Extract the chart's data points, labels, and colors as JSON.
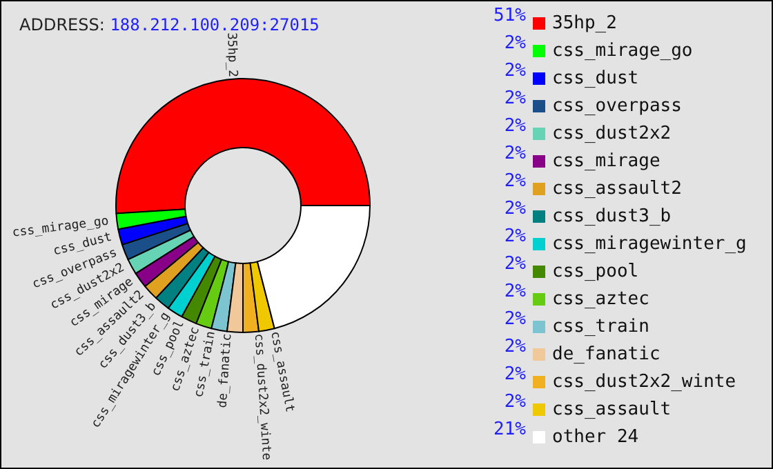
{
  "chart_data": {
    "type": "donut",
    "subtitle": "ADDRESS: 188.212.100.209:27015",
    "categories": [
      "35hp_2",
      "css_mirage_go",
      "css_dust",
      "css_overpass",
      "css_dust2x2",
      "css_mirage",
      "css_assault2",
      "css_dust3_b",
      "css_miragewinter_g",
      "css_pool",
      "css_aztec",
      "css_train",
      "de_fanatic",
      "css_dust2x2_winte",
      "css_assault",
      "other 24"
    ],
    "values": [
      51,
      2,
      2,
      2,
      2,
      2,
      2,
      2,
      2,
      2,
      2,
      2,
      2,
      2,
      2,
      21
    ],
    "value_labels": [
      "51%",
      "2%",
      "2%",
      "2%",
      "2%",
      "2%",
      "2%",
      "2%",
      "2%",
      "2%",
      "2%",
      "2%",
      "2%",
      "2%",
      "2%",
      "21%"
    ],
    "colors": [
      "#ff0000",
      "#00ff00",
      "#0000ff",
      "#1a4f8a",
      "#66d4b4",
      "#880088",
      "#e0a020",
      "#008080",
      "#00d0d0",
      "#448800",
      "#66cc11",
      "#7cc4d0",
      "#f0c89a",
      "#f0b020",
      "#f0c800",
      "#ffffff"
    ],
    "legend": "right"
  }
}
